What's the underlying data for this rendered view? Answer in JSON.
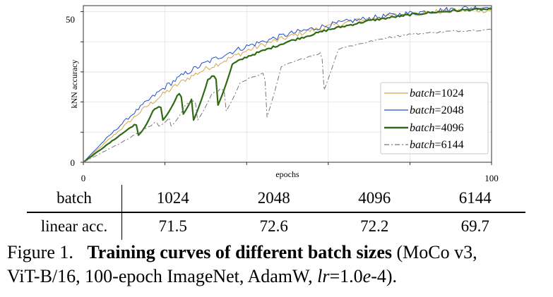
{
  "chart_data": {
    "type": "line",
    "xlabel": "epochs",
    "ylabel": "kNN accuracy",
    "xlim": [
      0,
      100
    ],
    "ylim": [
      0,
      52
    ],
    "x_ticks": [
      "0",
      "100"
    ],
    "y_ticks": [
      "0",
      "50"
    ],
    "legend_position": "right-middle",
    "grid": true,
    "series": [
      {
        "name": "batch=1024",
        "legend_name": "batch",
        "legend_value": "=1024",
        "color": "#d4a64a",
        "style": "solid",
        "x": [
          0,
          5,
          10,
          15,
          20,
          25,
          30,
          35,
          40,
          45,
          50,
          55,
          60,
          65,
          70,
          75,
          80,
          85,
          90,
          95,
          100
        ],
        "y": [
          0,
          6,
          12,
          18,
          23,
          27.5,
          31,
          34,
          37,
          39.5,
          41.5,
          43.5,
          45,
          46.5,
          47.5,
          48.5,
          49.3,
          49.8,
          50.2,
          50.5,
          50.5
        ]
      },
      {
        "name": "batch=2048",
        "legend_name": "batch",
        "legend_value": "=2048",
        "color": "#1f4fc8",
        "style": "solid",
        "x": [
          0,
          5,
          10,
          15,
          20,
          25,
          30,
          35,
          40,
          45,
          50,
          55,
          60,
          65,
          70,
          75,
          80,
          85,
          90,
          95,
          100
        ],
        "y": [
          0,
          7,
          13.5,
          19.5,
          25,
          29.5,
          33,
          36,
          38.5,
          40.5,
          42.5,
          44,
          45.5,
          46.8,
          47.8,
          48.7,
          49.5,
          50.2,
          50.8,
          51.3,
          51.6
        ]
      },
      {
        "name": "batch=4096",
        "legend_name": "batch",
        "legend_value": "=4096",
        "color": "#2e6b14",
        "style": "solid",
        "x": [
          0,
          5,
          10,
          15,
          20,
          25,
          30,
          35,
          40,
          45,
          50,
          55,
          60,
          65,
          70,
          75,
          80,
          85,
          90,
          95,
          100
        ],
        "y": [
          0,
          5,
          10,
          15,
          20,
          23.5,
          27,
          31.5,
          35,
          37.5,
          40,
          42,
          44,
          45.5,
          47,
          48,
          49,
          49.7,
          50.2,
          50.7,
          50.8
        ],
        "dips": [
          [
            13.5,
            9
          ],
          [
            19.5,
            14
          ],
          [
            24.5,
            16
          ],
          [
            27,
            14
          ],
          [
            33,
            19
          ]
        ]
      },
      {
        "name": "batch=6144",
        "legend_name": "batch",
        "legend_value": "=6144",
        "color": "#777777",
        "style": "dashdot",
        "x": [
          0,
          5,
          10,
          15,
          20,
          25,
          30,
          35,
          40,
          45,
          50,
          55,
          60,
          65,
          70,
          75,
          80,
          85,
          90,
          95,
          100
        ],
        "y": [
          0,
          3.5,
          7,
          11,
          15,
          19,
          22,
          25,
          27.5,
          30,
          32.5,
          35,
          37,
          38.5,
          40,
          41.5,
          42.5,
          43,
          43.5,
          43.8,
          44
        ],
        "dips": [
          [
            18.5,
            12
          ],
          [
            21.5,
            12
          ],
          [
            28,
            14
          ],
          [
            35,
            17
          ],
          [
            45,
            15
          ],
          [
            59,
            24
          ]
        ]
      }
    ]
  },
  "table": {
    "header_label": "batch",
    "row_label": "linear acc.",
    "columns": [
      "1024",
      "2048",
      "4096",
      "6144"
    ],
    "values": [
      "71.5",
      "72.6",
      "72.2",
      "69.7"
    ]
  },
  "caption": {
    "prefix": "Figure 1.",
    "bold": "Training curves of different batch sizes",
    "rest_line1": "(MoCo v3,",
    "line2_start": "ViT-B/16, 100-epoch ImageNet, AdamW,",
    "lr_var": "lr",
    "lr_eq": "=1.0",
    "lr_e": "e",
    "lr_end": "-4)."
  }
}
